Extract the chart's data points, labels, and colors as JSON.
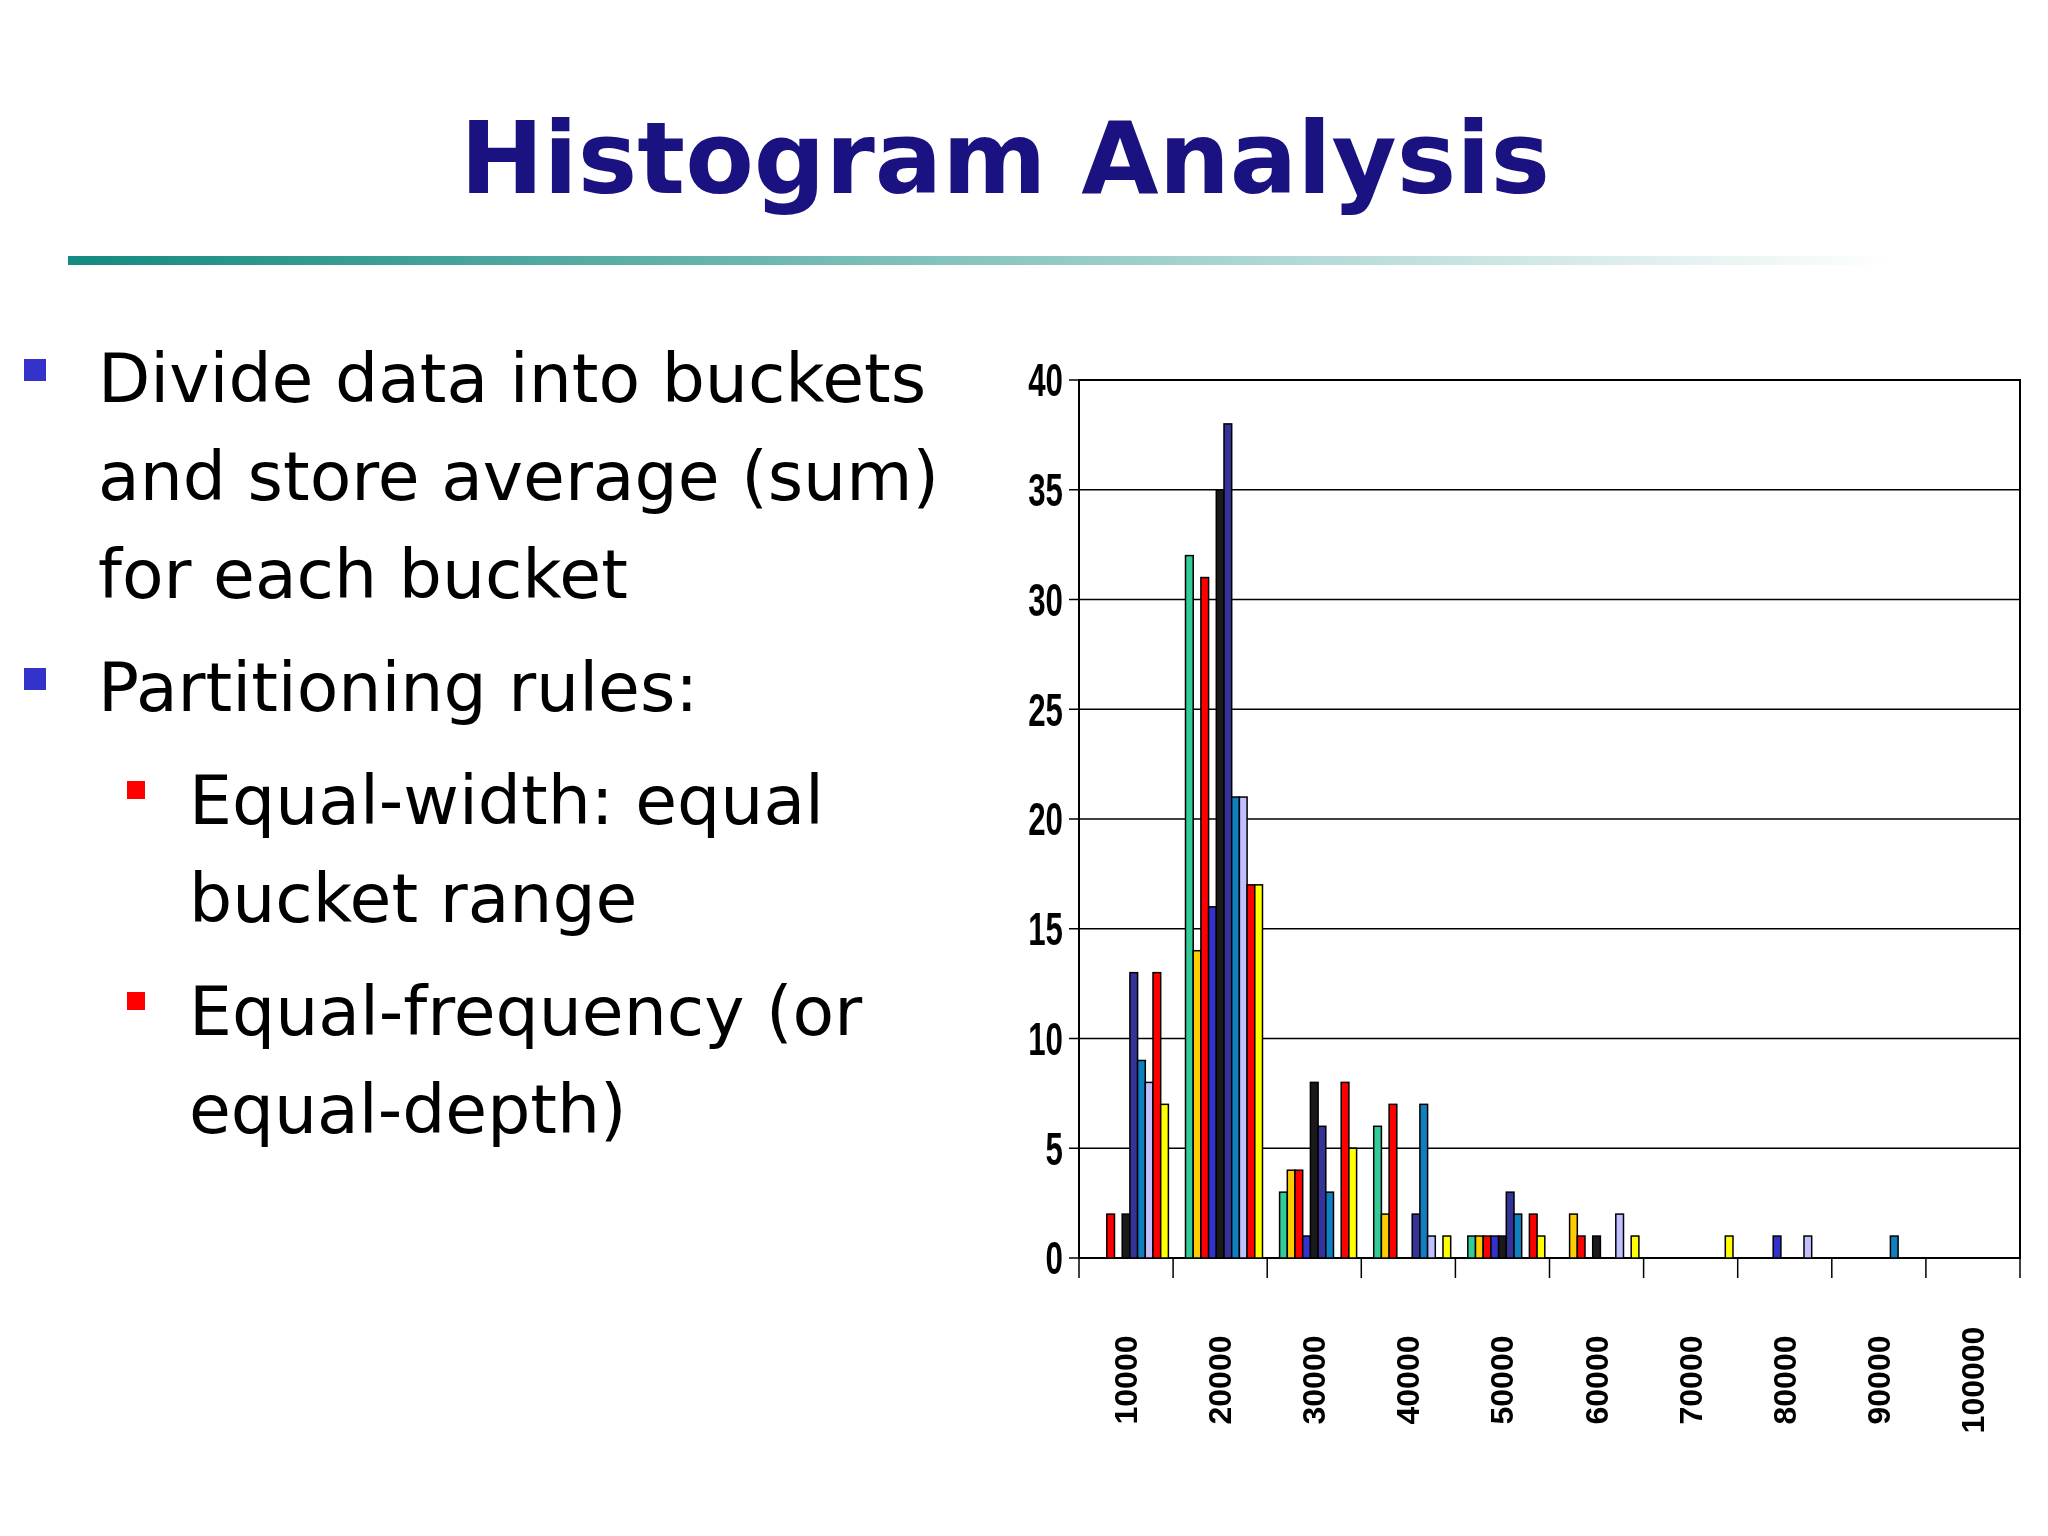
{
  "chart_data": {
    "type": "bar",
    "title": "Histogram Analysis",
    "annotations": [
      "Divide data into buckets and store average (sum) for each bucket",
      "Partitioning rules:",
      "Equal-width: equal bucket range",
      "Equal-frequency (or equal-depth)"
    ],
    "categories": [
      "10000",
      "20000",
      "30000",
      "40000",
      "50000",
      "60000",
      "70000",
      "80000",
      "90000",
      "100000"
    ],
    "series": [
      {
        "color": "#969696",
        "values": [
          0,
          0,
          0,
          0,
          0,
          0,
          0,
          0,
          0,
          0
        ]
      },
      {
        "color": "#33cc99",
        "values": [
          0,
          32,
          3,
          6,
          1,
          0,
          0,
          0,
          0,
          0
        ]
      },
      {
        "color": "#ffcc00",
        "values": [
          0,
          14,
          4,
          2,
          1,
          2,
          0,
          0,
          0,
          0
        ]
      },
      {
        "color": "#ff0000",
        "values": [
          2,
          31,
          4,
          7,
          1,
          1,
          0,
          0,
          0,
          0
        ]
      },
      {
        "color": "#3333cc",
        "values": [
          0,
          16,
          1,
          0,
          1,
          0,
          0,
          1,
          0,
          0
        ]
      },
      {
        "color": "#1a1a1a",
        "values": [
          2,
          35,
          8,
          0,
          1,
          1,
          0,
          0,
          0,
          0
        ]
      },
      {
        "color": "#333399",
        "values": [
          13,
          38,
          6,
          2,
          3,
          0,
          0,
          0,
          0,
          0
        ]
      },
      {
        "color": "#0f7fc0",
        "values": [
          9,
          21,
          3,
          7,
          2,
          0,
          0,
          0,
          1,
          0
        ]
      },
      {
        "color": "#c0c0ff",
        "values": [
          8,
          21,
          0,
          1,
          0,
          2,
          0,
          1,
          0,
          0
        ]
      },
      {
        "color": "#ff0000",
        "values": [
          13,
          17,
          8,
          0,
          2,
          0,
          0,
          0,
          0,
          0
        ]
      },
      {
        "color": "#ffff00",
        "values": [
          7,
          17,
          5,
          1,
          1,
          1,
          1,
          0,
          0,
          0
        ]
      }
    ],
    "ylim": [
      0,
      40
    ],
    "yticks": [
      0,
      5,
      10,
      15,
      20,
      25,
      30,
      35,
      40
    ],
    "grid": "y"
  }
}
